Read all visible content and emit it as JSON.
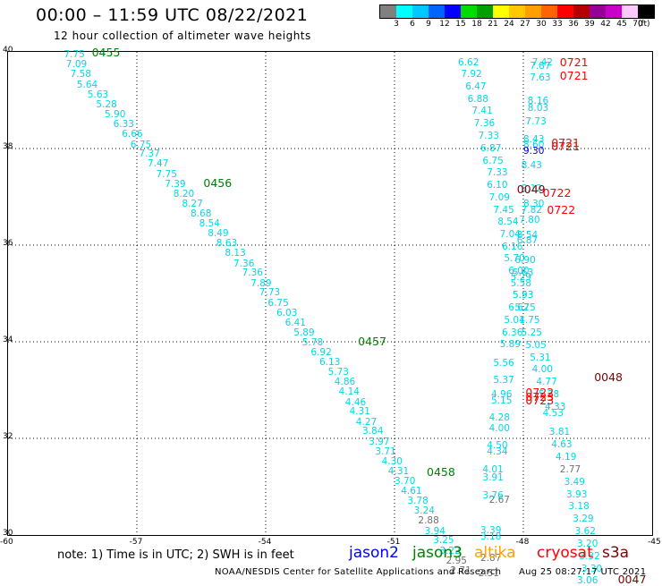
{
  "title": "00:00 – 11:59 UTC 08/22/2021",
  "subtitle": "12 hour collection of altimeter wave heights",
  "colorbar": {
    "colors": [
      "#808080",
      "#00ffff",
      "#00c8ff",
      "#0064ff",
      "#0000ff",
      "#00dc00",
      "#00a000",
      "#ffff00",
      "#ffc800",
      "#ffa000",
      "#ff6400",
      "#ff0000",
      "#b40000",
      "#960096",
      "#c800c8",
      "#ffc8ff",
      "#000000"
    ],
    "ticks": [
      "3",
      "6",
      "9",
      "12",
      "15",
      "18",
      "21",
      "24",
      "27",
      "30",
      "33",
      "36",
      "39",
      "42",
      "45",
      "70"
    ],
    "unit": "(ft)"
  },
  "axes": {
    "x_ticks": [
      "-60",
      "-57",
      "-54",
      "-51",
      "-48",
      "-45"
    ],
    "y_ticks": [
      "40",
      "38",
      "36",
      "34",
      "32",
      "30"
    ],
    "lon_range": [
      -60,
      -45
    ],
    "lat_range": [
      30,
      40
    ]
  },
  "colors": {
    "cyan": "#00d8e8",
    "gray": "#707070",
    "blue": "#0000dd",
    "jason2": "#0000ff",
    "jason3": "#008000",
    "altika": "#ffa000",
    "cryosat": "#ff0000",
    "s3a": "#800000"
  },
  "observations": [
    {
      "text": "7.75",
      "lon": -58.45,
      "lat": 39.95,
      "c": "cyan"
    },
    {
      "text": "7.09",
      "lon": -58.4,
      "lat": 39.74,
      "c": "cyan"
    },
    {
      "text": "7.58",
      "lon": -58.3,
      "lat": 39.53,
      "c": "cyan"
    },
    {
      "text": "5.64",
      "lon": -58.15,
      "lat": 39.32,
      "c": "cyan"
    },
    {
      "text": "5.63",
      "lon": -57.9,
      "lat": 39.11,
      "c": "cyan"
    },
    {
      "text": "5.28",
      "lon": -57.7,
      "lat": 38.9,
      "c": "cyan"
    },
    {
      "text": "5.90",
      "lon": -57.5,
      "lat": 38.7,
      "c": "cyan"
    },
    {
      "text": "6.33",
      "lon": -57.3,
      "lat": 38.5,
      "c": "cyan"
    },
    {
      "text": "6.66",
      "lon": -57.1,
      "lat": 38.29,
      "c": "cyan"
    },
    {
      "text": "6.75",
      "lon": -56.9,
      "lat": 38.08,
      "c": "cyan"
    },
    {
      "text": "7.37",
      "lon": -56.7,
      "lat": 37.88,
      "c": "cyan"
    },
    {
      "text": "7.47",
      "lon": -56.5,
      "lat": 37.68,
      "c": "cyan"
    },
    {
      "text": "7.75",
      "lon": -56.3,
      "lat": 37.47,
      "c": "cyan"
    },
    {
      "text": "7.39",
      "lon": -56.1,
      "lat": 37.26,
      "c": "cyan"
    },
    {
      "text": "8.20",
      "lon": -55.9,
      "lat": 37.06,
      "c": "cyan"
    },
    {
      "text": "8.27",
      "lon": -55.7,
      "lat": 36.85,
      "c": "cyan"
    },
    {
      "text": "8.68",
      "lon": -55.5,
      "lat": 36.65,
      "c": "cyan"
    },
    {
      "text": "8.54",
      "lon": -55.3,
      "lat": 36.44,
      "c": "cyan"
    },
    {
      "text": "8.49",
      "lon": -55.1,
      "lat": 36.24,
      "c": "cyan"
    },
    {
      "text": "8.63",
      "lon": -54.9,
      "lat": 36.03,
      "c": "cyan"
    },
    {
      "text": "8.13",
      "lon": -54.7,
      "lat": 35.83,
      "c": "cyan"
    },
    {
      "text": "7.36",
      "lon": -54.5,
      "lat": 35.62,
      "c": "cyan"
    },
    {
      "text": "7.36",
      "lon": -54.3,
      "lat": 35.42,
      "c": "cyan"
    },
    {
      "text": "7.89",
      "lon": -54.1,
      "lat": 35.21,
      "c": "cyan"
    },
    {
      "text": "7.73",
      "lon": -53.9,
      "lat": 35.01,
      "c": "cyan"
    },
    {
      "text": "6.75",
      "lon": -53.7,
      "lat": 34.8,
      "c": "cyan"
    },
    {
      "text": "6.03",
      "lon": -53.5,
      "lat": 34.6,
      "c": "cyan"
    },
    {
      "text": "6.41",
      "lon": -53.3,
      "lat": 34.39,
      "c": "cyan"
    },
    {
      "text": "5.89",
      "lon": -53.1,
      "lat": 34.19,
      "c": "cyan"
    },
    {
      "text": "5.78",
      "lon": -52.9,
      "lat": 33.98,
      "c": "cyan"
    },
    {
      "text": "6.92",
      "lon": -52.7,
      "lat": 33.78,
      "c": "cyan"
    },
    {
      "text": "6.13",
      "lon": -52.5,
      "lat": 33.57,
      "c": "cyan"
    },
    {
      "text": "5.73",
      "lon": -52.3,
      "lat": 33.37,
      "c": "cyan"
    },
    {
      "text": "4.86",
      "lon": -52.15,
      "lat": 33.16,
      "c": "cyan"
    },
    {
      "text": "4.14",
      "lon": -52.05,
      "lat": 32.96,
      "c": "cyan"
    },
    {
      "text": "4.46",
      "lon": -51.9,
      "lat": 32.75,
      "c": "cyan"
    },
    {
      "text": "4.31",
      "lon": -51.8,
      "lat": 32.55,
      "c": "cyan"
    },
    {
      "text": "4.27",
      "lon": -51.65,
      "lat": 32.34,
      "c": "cyan"
    },
    {
      "text": "3.84",
      "lon": -51.5,
      "lat": 32.14,
      "c": "cyan"
    },
    {
      "text": "3.97",
      "lon": -51.35,
      "lat": 31.93,
      "c": "cyan"
    },
    {
      "text": "3.71",
      "lon": -51.2,
      "lat": 31.73,
      "c": "cyan"
    },
    {
      "text": "4.30",
      "lon": -51.05,
      "lat": 31.52,
      "c": "cyan"
    },
    {
      "text": "4.31",
      "lon": -50.9,
      "lat": 31.32,
      "c": "cyan"
    },
    {
      "text": "3.70",
      "lon": -50.75,
      "lat": 31.11,
      "c": "cyan"
    },
    {
      "text": "4.61",
      "lon": -50.6,
      "lat": 30.91,
      "c": "cyan"
    },
    {
      "text": "3.78",
      "lon": -50.45,
      "lat": 30.7,
      "c": "cyan"
    },
    {
      "text": "3.24",
      "lon": -50.3,
      "lat": 30.5,
      "c": "cyan"
    },
    {
      "text": "2.88",
      "lon": -50.2,
      "lat": 30.29,
      "c": "gray"
    },
    {
      "text": "3.94",
      "lon": -50.05,
      "lat": 30.08,
      "c": "cyan"
    },
    {
      "text": "3.25",
      "lon": -49.85,
      "lat": 29.88,
      "c": "cyan"
    },
    {
      "text": "3.22",
      "lon": -49.7,
      "lat": 29.67,
      "c": "cyan"
    },
    {
      "text": "2.95",
      "lon": -49.55,
      "lat": 29.47,
      "c": "gray"
    },
    {
      "text": "2.71",
      "lon": -49.45,
      "lat": 29.26,
      "c": "gray"
    },
    {
      "text": "6.62",
      "lon": -49.27,
      "lat": 39.78,
      "c": "cyan"
    },
    {
      "text": "7.92",
      "lon": -49.2,
      "lat": 39.53,
      "c": "cyan"
    },
    {
      "text": "6.47",
      "lon": -49.1,
      "lat": 39.27,
      "c": "cyan"
    },
    {
      "text": "6.88",
      "lon": -49.05,
      "lat": 39.02,
      "c": "cyan"
    },
    {
      "text": "7.41",
      "lon": -48.95,
      "lat": 38.77,
      "c": "cyan"
    },
    {
      "text": "7.36",
      "lon": -48.9,
      "lat": 38.51,
      "c": "cyan"
    },
    {
      "text": "7.33",
      "lon": -48.8,
      "lat": 38.26,
      "c": "cyan"
    },
    {
      "text": "6.87",
      "lon": -48.75,
      "lat": 38.0,
      "c": "cyan"
    },
    {
      "text": "6.75",
      "lon": -48.7,
      "lat": 37.75,
      "c": "cyan"
    },
    {
      "text": "7.33",
      "lon": -48.6,
      "lat": 37.5,
      "c": "cyan"
    },
    {
      "text": "6.10",
      "lon": -48.6,
      "lat": 37.24,
      "c": "cyan"
    },
    {
      "text": "7.09",
      "lon": -48.55,
      "lat": 36.99,
      "c": "cyan"
    },
    {
      "text": "7.45",
      "lon": -48.45,
      "lat": 36.73,
      "c": "cyan"
    },
    {
      "text": "8.54",
      "lon": -48.35,
      "lat": 36.48,
      "c": "cyan"
    },
    {
      "text": "7.04",
      "lon": -48.3,
      "lat": 36.23,
      "c": "cyan"
    },
    {
      "text": "6.16",
      "lon": -48.25,
      "lat": 35.97,
      "c": "cyan"
    },
    {
      "text": "5.70",
      "lon": -48.2,
      "lat": 35.72,
      "c": "cyan"
    },
    {
      "text": "6.00",
      "lon": -48.1,
      "lat": 35.46,
      "c": "cyan"
    },
    {
      "text": "5.58",
      "lon": -48.05,
      "lat": 35.21,
      "c": "cyan"
    },
    {
      "text": "5.93",
      "lon": -48.0,
      "lat": 34.96,
      "c": "cyan"
    },
    {
      "text": "6.62",
      "lon": -48.1,
      "lat": 34.7,
      "c": "cyan"
    },
    {
      "text": "5.01",
      "lon": -48.2,
      "lat": 34.45,
      "c": "cyan"
    },
    {
      "text": "6.36",
      "lon": -48.25,
      "lat": 34.19,
      "c": "cyan"
    },
    {
      "text": "5.89",
      "lon": -48.3,
      "lat": 33.94,
      "c": "cyan"
    },
    {
      "text": "5.56",
      "lon": -48.45,
      "lat": 33.55,
      "c": "cyan"
    },
    {
      "text": "5.37",
      "lon": -48.45,
      "lat": 33.2,
      "c": "cyan"
    },
    {
      "text": "4.96",
      "lon": -48.5,
      "lat": 32.9,
      "c": "cyan"
    },
    {
      "text": "5.15",
      "lon": -48.5,
      "lat": 32.78,
      "c": "cyan"
    },
    {
      "text": "4.28",
      "lon": -48.55,
      "lat": 32.42,
      "c": "cyan"
    },
    {
      "text": "4.00",
      "lon": -48.55,
      "lat": 32.2,
      "c": "cyan"
    },
    {
      "text": "4.50",
      "lon": -48.6,
      "lat": 31.85,
      "c": "cyan"
    },
    {
      "text": "4.34",
      "lon": -48.6,
      "lat": 31.72,
      "c": "cyan"
    },
    {
      "text": "4.01",
      "lon": -48.7,
      "lat": 31.35,
      "c": "cyan"
    },
    {
      "text": "3.91",
      "lon": -48.7,
      "lat": 31.18,
      "c": "cyan"
    },
    {
      "text": "2.67",
      "lon": -48.55,
      "lat": 30.72,
      "c": "gray"
    },
    {
      "text": "3.76",
      "lon": -48.7,
      "lat": 30.82,
      "c": "cyan"
    },
    {
      "text": "3.39",
      "lon": -48.75,
      "lat": 30.1,
      "c": "cyan"
    },
    {
      "text": "3.18",
      "lon": -48.75,
      "lat": 29.97,
      "c": "cyan"
    },
    {
      "text": "2.87",
      "lon": -48.75,
      "lat": 29.52,
      "c": "gray"
    },
    {
      "text": "2.51",
      "lon": -48.8,
      "lat": 29.2,
      "c": "gray"
    },
    {
      "text": "7.42",
      "lon": -47.55,
      "lat": 39.77,
      "c": "cyan"
    },
    {
      "text": "7.87",
      "lon": -47.6,
      "lat": 39.7,
      "c": "cyan"
    },
    {
      "text": "7.63",
      "lon": -47.6,
      "lat": 39.46,
      "c": "cyan"
    },
    {
      "text": "8.16",
      "lon": -47.65,
      "lat": 38.99,
      "c": "cyan"
    },
    {
      "text": "8.03",
      "lon": -47.65,
      "lat": 38.84,
      "c": "cyan"
    },
    {
      "text": "7.73",
      "lon": -47.7,
      "lat": 38.56,
      "c": "cyan"
    },
    {
      "text": "8.43",
      "lon": -47.75,
      "lat": 38.18,
      "c": "cyan"
    },
    {
      "text": "8.60",
      "lon": -47.75,
      "lat": 38.08,
      "c": "cyan"
    },
    {
      "text": "9.30",
      "lon": -47.75,
      "lat": 37.94,
      "c": "blue"
    },
    {
      "text": "8.43",
      "lon": -47.8,
      "lat": 37.64,
      "c": "cyan"
    },
    {
      "text": "8.12",
      "lon": -47.8,
      "lat": 37.17,
      "c": "cyan"
    },
    {
      "text": "8.30",
      "lon": -47.75,
      "lat": 36.85,
      "c": "cyan"
    },
    {
      "text": "7.82",
      "lon": -47.8,
      "lat": 36.72,
      "c": "cyan"
    },
    {
      "text": "7.80",
      "lon": -47.85,
      "lat": 36.52,
      "c": "cyan"
    },
    {
      "text": "8.54",
      "lon": -47.9,
      "lat": 36.2,
      "c": "cyan"
    },
    {
      "text": "6.87",
      "lon": -47.9,
      "lat": 36.1,
      "c": "cyan"
    },
    {
      "text": "6.90",
      "lon": -47.95,
      "lat": 35.69,
      "c": "cyan"
    },
    {
      "text": "5.63",
      "lon": -48.0,
      "lat": 35.42,
      "c": "cyan"
    },
    {
      "text": "5.29",
      "lon": -48.05,
      "lat": 35.34,
      "c": "cyan"
    },
    {
      "text": "5.53",
      "lon": -48.0,
      "lat": 34.96,
      "c": "cyan"
    },
    {
      "text": "5.75",
      "lon": -47.95,
      "lat": 34.71,
      "c": "cyan"
    },
    {
      "text": "4.75",
      "lon": -47.85,
      "lat": 34.44,
      "c": "cyan"
    },
    {
      "text": "5.25",
      "lon": -47.8,
      "lat": 34.19,
      "c": "cyan"
    },
    {
      "text": "5.05",
      "lon": -47.7,
      "lat": 33.93,
      "c": "cyan"
    },
    {
      "text": "5.31",
      "lon": -47.6,
      "lat": 33.67,
      "c": "cyan"
    },
    {
      "text": "4.00",
      "lon": -47.55,
      "lat": 33.42,
      "c": "cyan"
    },
    {
      "text": "4.77",
      "lon": -47.45,
      "lat": 33.16,
      "c": "cyan"
    },
    {
      "text": "5.28",
      "lon": -47.4,
      "lat": 32.9,
      "c": "cyan"
    },
    {
      "text": "4.33",
      "lon": -47.25,
      "lat": 32.64,
      "c": "cyan"
    },
    {
      "text": "4.53",
      "lon": -47.3,
      "lat": 32.52,
      "c": "cyan"
    },
    {
      "text": "3.81",
      "lon": -47.15,
      "lat": 32.13,
      "c": "cyan"
    },
    {
      "text": "4.63",
      "lon": -47.1,
      "lat": 31.87,
      "c": "cyan"
    },
    {
      "text": "4.19",
      "lon": -47.0,
      "lat": 31.62,
      "c": "cyan"
    },
    {
      "text": "2.77",
      "lon": -46.9,
      "lat": 31.36,
      "c": "gray"
    },
    {
      "text": "3.49",
      "lon": -46.8,
      "lat": 31.1,
      "c": "cyan"
    },
    {
      "text": "3.93",
      "lon": -46.75,
      "lat": 30.84,
      "c": "cyan"
    },
    {
      "text": "3.18",
      "lon": -46.7,
      "lat": 30.59,
      "c": "cyan"
    },
    {
      "text": "3.29",
      "lon": -46.6,
      "lat": 30.33,
      "c": "cyan"
    },
    {
      "text": "3.62",
      "lon": -46.55,
      "lat": 30.07,
      "c": "cyan"
    },
    {
      "text": "3.20",
      "lon": -46.5,
      "lat": 29.82,
      "c": "cyan"
    },
    {
      "text": "3.32",
      "lon": -46.45,
      "lat": 29.56,
      "c": "cyan"
    },
    {
      "text": "3.30",
      "lon": -46.4,
      "lat": 29.3,
      "c": "cyan"
    },
    {
      "text": "3.06",
      "lon": -46.5,
      "lat": 29.05,
      "c": "cyan"
    }
  ],
  "pass_labels": [
    {
      "text": "0455",
      "lon": -57.8,
      "lat": 39.98,
      "sat": "jason3"
    },
    {
      "text": "0456",
      "lon": -55.2,
      "lat": 37.28,
      "sat": "jason3"
    },
    {
      "text": "0457",
      "lon": -51.6,
      "lat": 34.0,
      "sat": "jason3"
    },
    {
      "text": "0458",
      "lon": -50.0,
      "lat": 31.3,
      "sat": "jason3"
    },
    {
      "text": "0721",
      "lon": -46.9,
      "lat": 39.78,
      "sat": "cryosat"
    },
    {
      "text": "0721",
      "lon": -46.9,
      "lat": 39.5,
      "sat": "cryosat"
    },
    {
      "text": "0721",
      "lon": -47.1,
      "lat": 38.12,
      "sat": "cryosat"
    },
    {
      "text": "0721",
      "lon": -47.1,
      "lat": 38.03,
      "sat": "cryosat"
    },
    {
      "text": "0049",
      "lon": -47.9,
      "lat": 37.14,
      "sat": "s3a"
    },
    {
      "text": "0722",
      "lon": -47.3,
      "lat": 37.08,
      "sat": "cryosat"
    },
    {
      "text": "0722",
      "lon": -47.2,
      "lat": 36.72,
      "sat": "cryosat"
    },
    {
      "text": "0048",
      "lon": -46.1,
      "lat": 33.26,
      "sat": "s3a"
    },
    {
      "text": "0722",
      "lon": -47.7,
      "lat": 32.95,
      "sat": "cryosat"
    },
    {
      "text": "0723",
      "lon": -47.7,
      "lat": 32.86,
      "sat": "cryosat"
    },
    {
      "text": "0723",
      "lon": -47.7,
      "lat": 32.78,
      "sat": "cryosat"
    },
    {
      "text": "0047",
      "lon": -45.55,
      "lat": 29.08,
      "sat": "s3a"
    }
  ],
  "note": "note: 1) Time is in UTC; 2) SWH is in feet",
  "legend": [
    {
      "name": "jason2",
      "key": "jason2",
      "x": 390
    },
    {
      "name": "jason3",
      "key": "jason3",
      "x": 461
    },
    {
      "name": "altika",
      "key": "altika",
      "x": 530
    },
    {
      "name": "cryosat",
      "key": "cryosat",
      "x": 600
    },
    {
      "name": "s3a",
      "key": "s3a",
      "x": 673
    }
  ],
  "footer_left": "NOAA/NESDIS Center for Satellite Applications and Research",
  "footer_right": "Aug 25 08:27:17 UTC 2021"
}
